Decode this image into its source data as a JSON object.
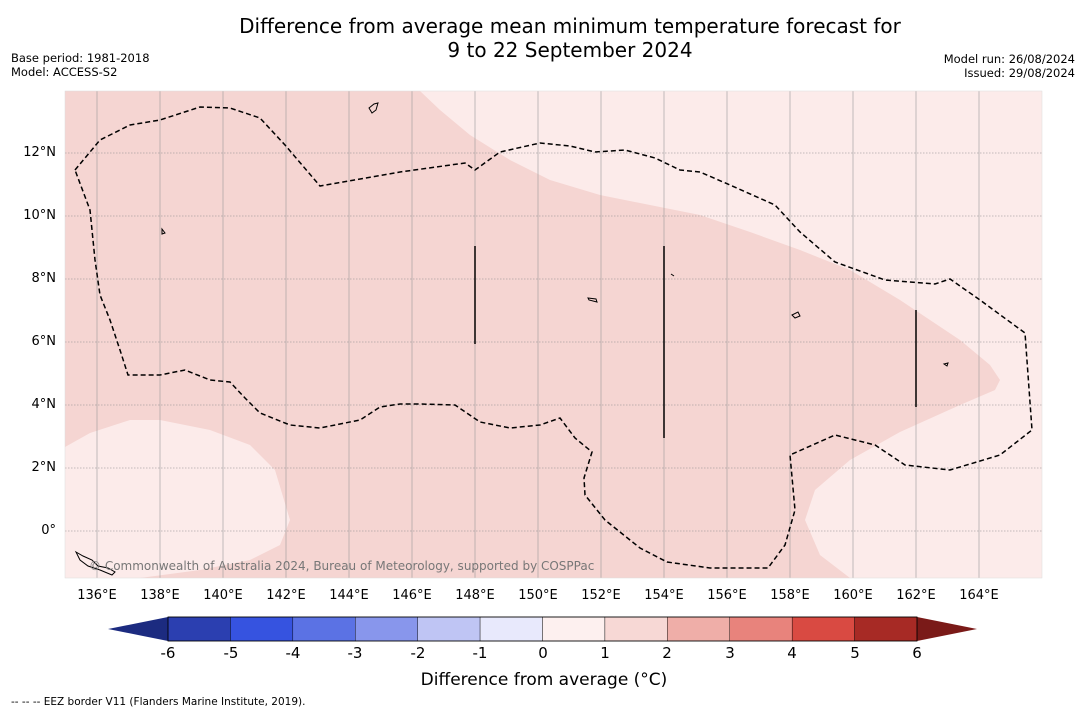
{
  "title_line1": "Difference from average mean minimum temperature forecast for",
  "title_line2": "9 to 22 September 2024",
  "meta_left": [
    "Base period: 1981-2018",
    "Model: ACCESS-S2"
  ],
  "meta_right": [
    "Model run: 26/08/2024",
    "Issued: 29/08/2024"
  ],
  "copyright": "© Commonwealth of Australia 2024, Bureau of Meteorology, supported by COSPPac",
  "map": {
    "lat_labels": [
      "12°N",
      "10°N",
      "8°N",
      "6°N",
      "4°N",
      "2°N",
      "0°"
    ],
    "lon_labels": [
      "136°E",
      "138°E",
      "140°E",
      "142°E",
      "144°E",
      "146°E",
      "148°E",
      "150°E",
      "152°E",
      "154°E",
      "156°E",
      "158°E",
      "160°E",
      "162°E",
      "164°E"
    ],
    "anomaly_classes": [
      {
        "range": "1 to 2",
        "color": "#f5d5d2"
      },
      {
        "range": "0 to 1",
        "color": "#fcebea"
      }
    ]
  },
  "colorbar": {
    "ticks": [
      "-6",
      "-5",
      "-4",
      "-3",
      "-2",
      "-1",
      "0",
      "1",
      "2",
      "3",
      "4",
      "5",
      "6"
    ],
    "colors": [
      "#2b3fb0",
      "#3653e0",
      "#5b72e4",
      "#8896ec",
      "#bfc5f4",
      "#e8e9fc",
      "#fdf0ef",
      "#f7d8d5",
      "#efaea8",
      "#e8837c",
      "#d94a42",
      "#a72a25"
    ],
    "under_color": "#1c2b80",
    "over_color": "#7a1a18",
    "label": "Difference from average (°C)"
  },
  "footer": "--  --  -- EEZ border V11 (Flanders Marine Institute, 2019)."
}
